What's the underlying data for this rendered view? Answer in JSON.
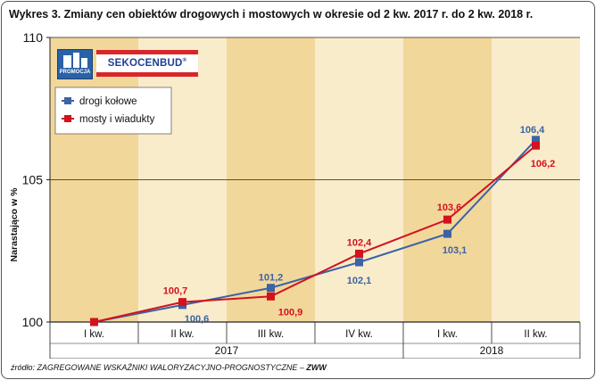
{
  "title": "Wykres 3.  Zmiany cen obiektów drogowych i mostowych w okresie od 2 kw. 2017 r. do 2 kw. 2018 r.",
  "source_prefix": "źródło: ZAGREGOWANE WSKAŹNIKI WALORYZACYJNO-PROGNOSTYCZNE – ",
  "source_abbr": "ZWW",
  "logo": {
    "promo_text": "PROMOCJA",
    "brand_text": "SEKOCENBUD",
    "brand_mark": "®"
  },
  "colors": {
    "band_dark": "#f2d79b",
    "band_light": "#f9eccb",
    "drogi": "#3b63a6",
    "mosty": "#d2121c",
    "axis": "#222222"
  },
  "chart_data": {
    "type": "line",
    "title": "",
    "ylabel": "Narastająco w %",
    "xlabel": "",
    "ylim": [
      100,
      110
    ],
    "yticks": [
      100,
      105,
      110
    ],
    "grid": true,
    "categories": [
      "I kw.",
      "II kw.",
      "III kw.",
      "IV kw.",
      "I kw.",
      "II kw."
    ],
    "year_groups": [
      {
        "label": "2017",
        "start": 0,
        "end": 3
      },
      {
        "label": "2018",
        "start": 4,
        "end": 5
      }
    ],
    "legend_position": "top-left",
    "series": [
      {
        "name": "drogi kołowe",
        "color": "#3b63a6",
        "values": [
          100.0,
          100.6,
          101.2,
          102.1,
          103.1,
          106.4
        ],
        "labels": [
          "",
          "100,6",
          "101,2",
          "102,1",
          "103,1",
          "106,4"
        ]
      },
      {
        "name": "mosty i wiadukty",
        "color": "#d2121c",
        "values": [
          100.0,
          100.7,
          100.9,
          102.4,
          103.6,
          106.2
        ],
        "labels": [
          "",
          "100,7",
          "100,9",
          "102,4",
          "103,6",
          "106,2"
        ]
      }
    ]
  }
}
